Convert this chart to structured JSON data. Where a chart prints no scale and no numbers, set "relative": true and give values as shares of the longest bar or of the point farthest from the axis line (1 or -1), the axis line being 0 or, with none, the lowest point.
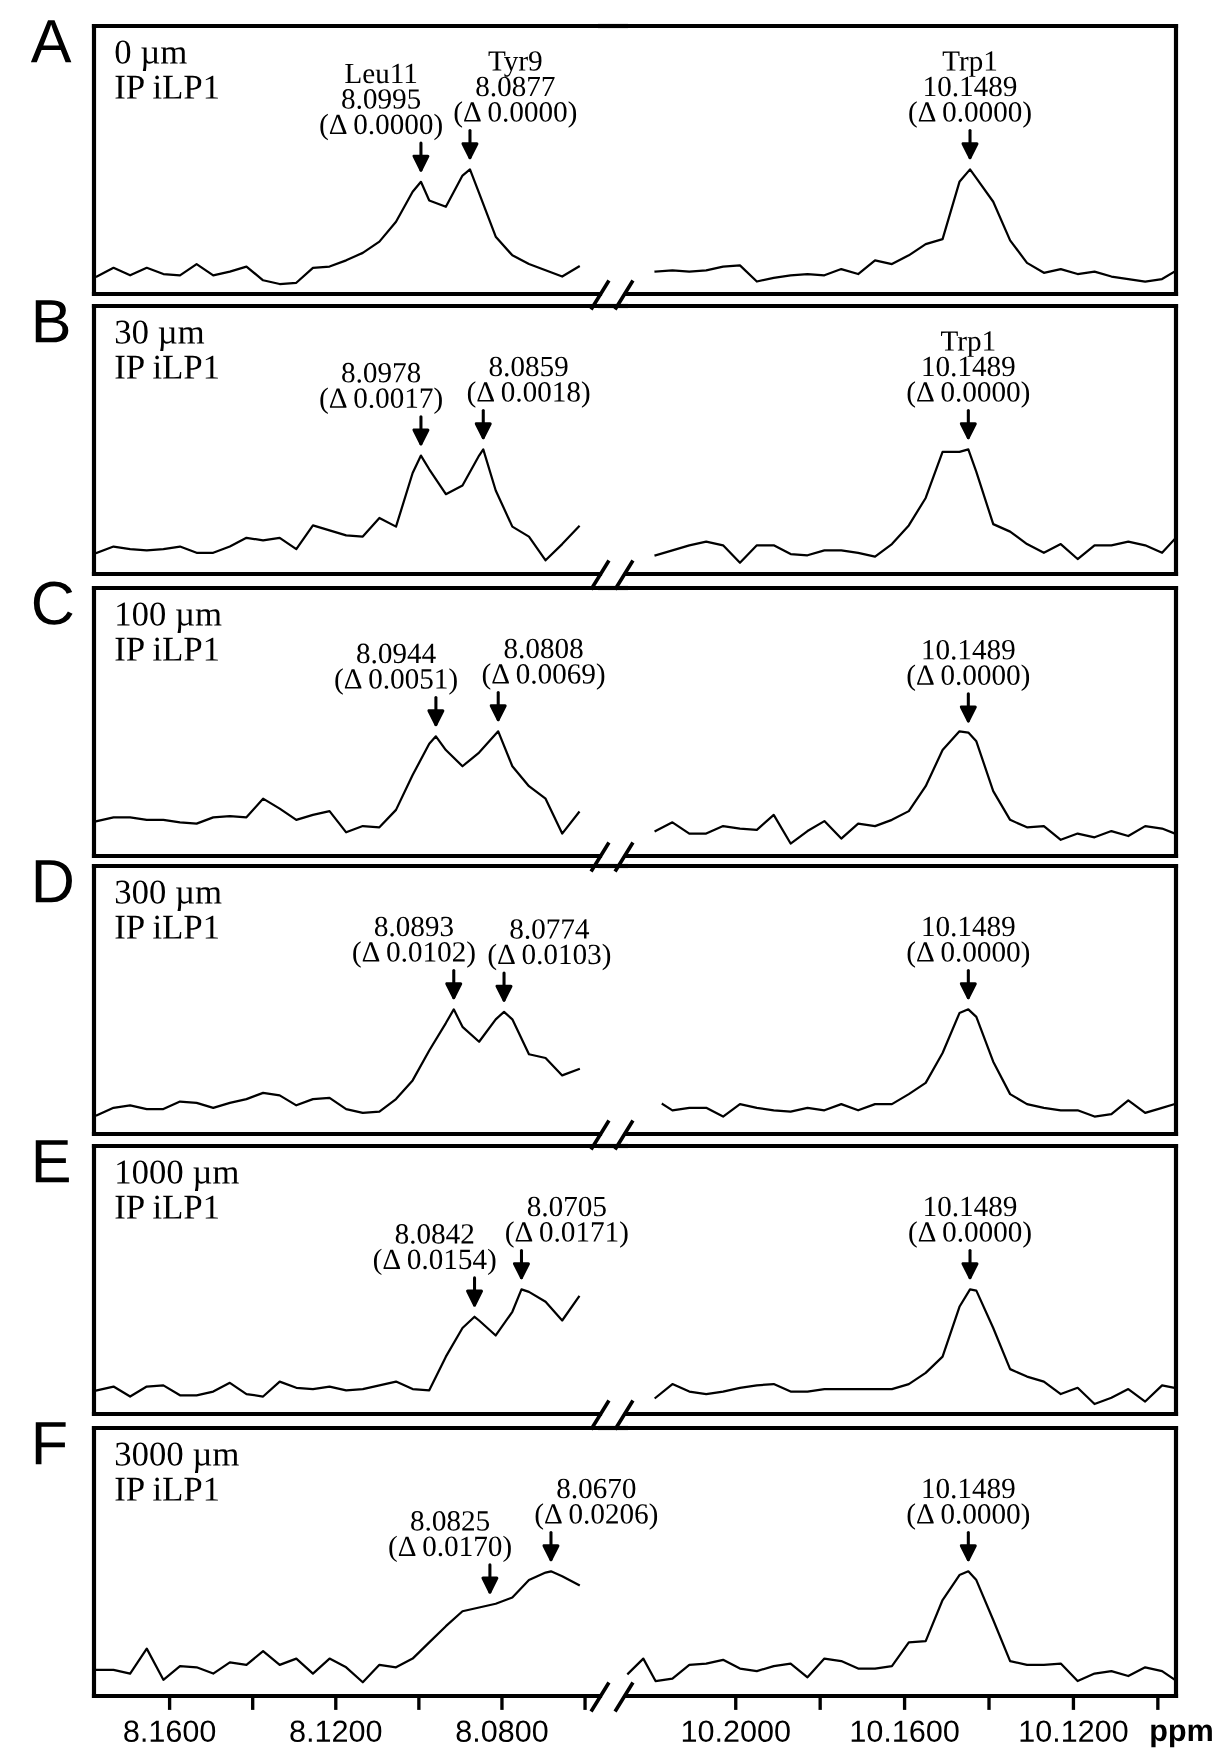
{
  "chart_data": [
    {
      "type": "line",
      "relative": true,
      "title": "A",
      "tick_labels": false,
      "xlim": [
        8.1782,
        8.0564
      ],
      "annotations": [
        "0 µm\nIP iLP1",
        {
          "text": "Leu11\n8.0995\n(Δ 0.0000)",
          "x": 8.0995,
          "y": 0.9
        },
        {
          "text": "Tyr9\n8.0877\n(Δ 0.0000)",
          "x": 8.0877,
          "y": 1
        }
      ],
      "series": [
        {
          "color": "#000000",
          "x": [
            8.1775,
            8.1735,
            8.1695,
            8.1655,
            8.1615,
            8.1575,
            8.1535,
            8.1495,
            8.1455,
            8.1415,
            8.1375,
            8.1335,
            8.1295,
            8.1255,
            8.1215,
            8.1175,
            8.1135,
            8.1095,
            8.1055,
            8.1015,
            8.0995,
            8.0975,
            8.0935,
            8.0895,
            8.0877,
            8.0855,
            8.0815,
            8.0775,
            8.0735,
            8.0695,
            8.0655,
            8.0615
          ],
          "values": [
            0.14,
            0.21,
            0.15,
            0.21,
            0.16,
            0.15,
            0.24,
            0.15,
            0.18,
            0.22,
            0.11,
            0.08,
            0.09,
            0.21,
            0.22,
            0.27,
            0.33,
            0.42,
            0.58,
            0.82,
            0.9,
            0.75,
            0.7,
            0.95,
            1,
            0.81,
            0.46,
            0.31,
            0.24,
            0.19,
            0.14,
            0.22
          ]
        }
      ]
    },
    {
      "type": "line",
      "relative": true,
      "tick_labels": false,
      "xlim": [
        10.226,
        10.0957
      ],
      "annotations": [
        {
          "text": "Trp1\n10.1489\n(Δ 0.0000)",
          "x": 10.1445,
          "y": 1
        }
      ],
      "series": [
        {
          "color": "#000000",
          "x": [
            10.219,
            10.215,
            10.211,
            10.207,
            10.203,
            10.199,
            10.195,
            10.191,
            10.187,
            10.183,
            10.179,
            10.175,
            10.171,
            10.167,
            10.163,
            10.159,
            10.155,
            10.151,
            10.147,
            10.1445,
            10.143,
            10.139,
            10.135,
            10.131,
            10.127,
            10.123,
            10.119,
            10.115,
            10.111,
            10.107,
            10.103,
            10.099,
            10.096
          ],
          "values": [
            0.18,
            0.19,
            0.18,
            0.19,
            0.22,
            0.23,
            0.1,
            0.13,
            0.15,
            0.16,
            0.15,
            0.2,
            0.16,
            0.27,
            0.24,
            0.31,
            0.4,
            0.44,
            0.9,
            1,
            0.93,
            0.74,
            0.43,
            0.25,
            0.17,
            0.2,
            0.16,
            0.18,
            0.14,
            0.12,
            0.1,
            0.12,
            0.18
          ]
        }
      ]
    },
    {
      "type": "line",
      "relative": true,
      "title": "B",
      "tick_labels": false,
      "xlim": [
        8.1782,
        8.0564
      ],
      "annotations": [
        "30 µm\nIP iLP1",
        {
          "text": "8.0978\n(Δ 0.0017)",
          "x": 8.0995,
          "y": 0.95
        },
        {
          "text": "8.0859\n(Δ 0.0018)",
          "x": 8.0845,
          "y": 1
        }
      ],
      "series": [
        {
          "color": "#000000",
          "x": [
            8.1775,
            8.1735,
            8.1695,
            8.1655,
            8.1615,
            8.1575,
            8.1535,
            8.1495,
            8.1455,
            8.1415,
            8.1375,
            8.1335,
            8.1295,
            8.1255,
            8.1215,
            8.1175,
            8.1135,
            8.1095,
            8.1055,
            8.1015,
            8.0995,
            8.0975,
            8.0935,
            8.0895,
            8.0855,
            8.0845,
            8.0815,
            8.0775,
            8.0735,
            8.0695,
            8.0655,
            8.0615
          ],
          "values": [
            0.17,
            0.22,
            0.2,
            0.19,
            0.2,
            0.22,
            0.17,
            0.17,
            0.22,
            0.29,
            0.27,
            0.29,
            0.2,
            0.39,
            0.35,
            0.31,
            0.3,
            0.45,
            0.38,
            0.81,
            0.95,
            0.84,
            0.64,
            0.71,
            0.95,
            1,
            0.67,
            0.38,
            0.3,
            0.11,
            0.24,
            0.38
          ]
        }
      ]
    },
    {
      "type": "line",
      "relative": true,
      "tick_labels": false,
      "xlim": [
        10.226,
        10.0957
      ],
      "annotations": [
        {
          "text": "Trp1\n10.1489\n(Δ 0.0000)",
          "x": 10.1449,
          "y": 1
        }
      ],
      "series": [
        {
          "color": "#000000",
          "x": [
            10.219,
            10.215,
            10.211,
            10.207,
            10.203,
            10.199,
            10.195,
            10.191,
            10.187,
            10.183,
            10.179,
            10.175,
            10.171,
            10.167,
            10.163,
            10.159,
            10.155,
            10.151,
            10.147,
            10.1449,
            10.143,
            10.139,
            10.135,
            10.131,
            10.127,
            10.123,
            10.119,
            10.115,
            10.111,
            10.107,
            10.103,
            10.099,
            10.096
          ],
          "values": [
            0.15,
            0.19,
            0.23,
            0.26,
            0.23,
            0.09,
            0.23,
            0.23,
            0.16,
            0.15,
            0.19,
            0.19,
            0.17,
            0.14,
            0.24,
            0.39,
            0.61,
            0.98,
            0.98,
            1,
            0.82,
            0.4,
            0.34,
            0.24,
            0.17,
            0.24,
            0.12,
            0.23,
            0.23,
            0.26,
            0.23,
            0.17,
            0.28
          ]
        }
      ]
    },
    {
      "type": "line",
      "relative": true,
      "title": "C",
      "tick_labels": false,
      "xlim": [
        8.1782,
        8.0564
      ],
      "annotations": [
        "100 µm\nIP iLP1",
        {
          "text": "8.0944\n(Δ 0.0051)",
          "x": 8.0959,
          "y": 0.96
        },
        {
          "text": "8.0808\n(Δ 0.0069)",
          "x": 8.0809,
          "y": 1
        }
      ],
      "series": [
        {
          "color": "#000000",
          "x": [
            8.1775,
            8.1735,
            8.1695,
            8.1655,
            8.1615,
            8.1575,
            8.1535,
            8.1495,
            8.1455,
            8.1415,
            8.1375,
            8.1335,
            8.1295,
            8.1255,
            8.1215,
            8.1175,
            8.1135,
            8.1095,
            8.1055,
            8.1015,
            8.0975,
            8.0959,
            8.0935,
            8.0895,
            8.0855,
            8.0809,
            8.0775,
            8.0735,
            8.0695,
            8.0655,
            8.0615
          ],
          "values": [
            0.28,
            0.31,
            0.31,
            0.29,
            0.29,
            0.27,
            0.26,
            0.31,
            0.32,
            0.31,
            0.46,
            0.38,
            0.29,
            0.33,
            0.36,
            0.19,
            0.24,
            0.23,
            0.37,
            0.65,
            0.9,
            0.96,
            0.85,
            0.72,
            0.83,
            1,
            0.72,
            0.56,
            0.46,
            0.18,
            0.35
          ]
        }
      ]
    },
    {
      "type": "line",
      "relative": true,
      "tick_labels": false,
      "xlim": [
        10.226,
        10.0957
      ],
      "annotations": [
        {
          "text": "10.1489\n(Δ 0.0000)",
          "x": 10.1449,
          "y": 0.99
        }
      ],
      "series": [
        {
          "color": "#000000",
          "x": [
            10.219,
            10.215,
            10.211,
            10.207,
            10.203,
            10.199,
            10.195,
            10.191,
            10.187,
            10.183,
            10.179,
            10.175,
            10.171,
            10.167,
            10.163,
            10.159,
            10.155,
            10.151,
            10.147,
            10.1449,
            10.143,
            10.139,
            10.135,
            10.131,
            10.127,
            10.123,
            10.119,
            10.115,
            10.111,
            10.107,
            10.103,
            10.099,
            10.096
          ],
          "values": [
            0.2,
            0.27,
            0.18,
            0.18,
            0.24,
            0.22,
            0.21,
            0.33,
            0.1,
            0.2,
            0.28,
            0.14,
            0.26,
            0.24,
            0.29,
            0.36,
            0.56,
            0.85,
            1,
            0.99,
            0.92,
            0.52,
            0.29,
            0.23,
            0.24,
            0.13,
            0.18,
            0.15,
            0.2,
            0.16,
            0.24,
            0.22,
            0.18
          ]
        }
      ]
    },
    {
      "type": "line",
      "relative": true,
      "title": "D",
      "tick_labels": false,
      "xlim": [
        8.1782,
        8.0564
      ],
      "annotations": [
        "300 µm\nIP iLP1",
        {
          "text": "8.0893\n(Δ 0.0102)",
          "x": 8.0916,
          "y": 1
        },
        {
          "text": "8.0774\n(Δ 0.0103)",
          "x": 8.0795,
          "y": 0.98
        }
      ],
      "series": [
        {
          "color": "#000000",
          "x": [
            8.1775,
            8.1735,
            8.1695,
            8.1655,
            8.1615,
            8.1575,
            8.1535,
            8.1495,
            8.1455,
            8.1415,
            8.1375,
            8.1335,
            8.1295,
            8.1255,
            8.1215,
            8.1175,
            8.1135,
            8.1095,
            8.1055,
            8.1015,
            8.0975,
            8.0935,
            8.0916,
            8.0895,
            8.0855,
            8.0815,
            8.0795,
            8.0775,
            8.0735,
            8.0695,
            8.0655,
            8.0615
          ],
          "values": [
            0.15,
            0.21,
            0.23,
            0.2,
            0.2,
            0.26,
            0.25,
            0.21,
            0.25,
            0.28,
            0.33,
            0.31,
            0.23,
            0.28,
            0.29,
            0.2,
            0.17,
            0.18,
            0.28,
            0.43,
            0.67,
            0.89,
            1,
            0.86,
            0.74,
            0.92,
            0.98,
            0.92,
            0.64,
            0.61,
            0.47,
            0.52
          ]
        }
      ]
    },
    {
      "type": "line",
      "relative": true,
      "tick_labels": false,
      "xlim": [
        10.226,
        10.0957
      ],
      "annotations": [
        {
          "text": "10.1489\n(Δ 0.0000)",
          "x": 10.1449,
          "y": 1
        }
      ],
      "series": [
        {
          "color": "#000000",
          "x": [
            10.2173,
            10.215,
            10.211,
            10.207,
            10.203,
            10.199,
            10.195,
            10.191,
            10.187,
            10.183,
            10.179,
            10.175,
            10.171,
            10.167,
            10.163,
            10.159,
            10.155,
            10.151,
            10.147,
            10.1449,
            10.143,
            10.139,
            10.135,
            10.131,
            10.127,
            10.123,
            10.119,
            10.115,
            10.111,
            10.107,
            10.103,
            10.099,
            10.096
          ],
          "values": [
            0.24,
            0.19,
            0.21,
            0.21,
            0.14,
            0.24,
            0.21,
            0.19,
            0.18,
            0.21,
            0.19,
            0.24,
            0.19,
            0.24,
            0.24,
            0.32,
            0.41,
            0.65,
            0.97,
            1,
            0.94,
            0.58,
            0.32,
            0.24,
            0.21,
            0.19,
            0.19,
            0.14,
            0.16,
            0.27,
            0.17,
            0.21,
            0.24
          ]
        }
      ]
    },
    {
      "type": "line",
      "relative": true,
      "title": "E",
      "tick_labels": false,
      "xlim": [
        8.1782,
        8.0564
      ],
      "annotations": [
        "1000 µm\nIP iLP1",
        {
          "text": "8.0842\n(Δ 0.0154)",
          "x": 8.0866,
          "y": 0.78
        },
        {
          "text": "8.0705\n(Δ 0.0171)",
          "x": 8.0753,
          "y": 1
        }
      ],
      "series": [
        {
          "color": "#000000",
          "x": [
            8.1775,
            8.1735,
            8.1695,
            8.1655,
            8.1615,
            8.1575,
            8.1535,
            8.1495,
            8.1455,
            8.1415,
            8.1375,
            8.1335,
            8.1295,
            8.1255,
            8.1215,
            8.1175,
            8.1135,
            8.1095,
            8.1055,
            8.1015,
            8.0975,
            8.0935,
            8.0895,
            8.0866,
            8.0855,
            8.0815,
            8.0775,
            8.0753,
            8.0735,
            8.0695,
            8.0655,
            8.0615
          ],
          "values": [
            0.19,
            0.22,
            0.14,
            0.22,
            0.23,
            0.15,
            0.15,
            0.18,
            0.25,
            0.16,
            0.14,
            0.26,
            0.21,
            0.2,
            0.22,
            0.19,
            0.2,
            0.23,
            0.26,
            0.2,
            0.19,
            0.46,
            0.69,
            0.78,
            0.75,
            0.63,
            0.82,
            1,
            0.98,
            0.9,
            0.75,
            0.94
          ]
        }
      ]
    },
    {
      "type": "line",
      "relative": true,
      "tick_labels": false,
      "xlim": [
        10.226,
        10.0957
      ],
      "annotations": [
        {
          "text": "10.1489\n(Δ 0.0000)",
          "x": 10.1445,
          "y": 1
        }
      ],
      "series": [
        {
          "color": "#000000",
          "x": [
            10.219,
            10.215,
            10.211,
            10.207,
            10.203,
            10.199,
            10.195,
            10.191,
            10.187,
            10.183,
            10.179,
            10.175,
            10.171,
            10.167,
            10.163,
            10.159,
            10.155,
            10.151,
            10.147,
            10.1445,
            10.143,
            10.139,
            10.135,
            10.131,
            10.127,
            10.123,
            10.119,
            10.115,
            10.111,
            10.107,
            10.103,
            10.099,
            10.096
          ],
          "values": [
            0.13,
            0.24,
            0.18,
            0.16,
            0.18,
            0.21,
            0.23,
            0.24,
            0.18,
            0.18,
            0.2,
            0.2,
            0.2,
            0.2,
            0.2,
            0.24,
            0.33,
            0.46,
            0.86,
            1,
            0.99,
            0.69,
            0.36,
            0.3,
            0.26,
            0.16,
            0.21,
            0.08,
            0.13,
            0.2,
            0.1,
            0.23,
            0.21
          ]
        }
      ]
    },
    {
      "type": "line",
      "relative": true,
      "title": "F",
      "tick_labels": "x",
      "xlim": [
        8.1782,
        8.0564
      ],
      "xticks": [
        {
          "value": 8.16,
          "label": "8.1600"
        },
        {
          "value": 8.14,
          "label": null
        },
        {
          "value": 8.12,
          "label": "8.1200"
        },
        {
          "value": 8.1,
          "label": null
        },
        {
          "value": 8.08,
          "label": "8.0800"
        },
        {
          "value": 8.06,
          "label": null
        }
      ],
      "annotations": [
        "3000 µm\nIP iLP1",
        {
          "text": "8.0825\n(Δ 0.0170)",
          "x": 8.0829,
          "y": 0.74
        },
        {
          "text": "8.0670\n(Δ 0.0206)",
          "x": 8.0682,
          "y": 1
        }
      ],
      "series": [
        {
          "color": "#000000",
          "x": [
            8.1775,
            8.1735,
            8.1695,
            8.1655,
            8.1615,
            8.1575,
            8.1535,
            8.1495,
            8.1455,
            8.1415,
            8.1375,
            8.1335,
            8.1295,
            8.1255,
            8.1215,
            8.1175,
            8.1135,
            8.1095,
            8.1055,
            8.1015,
            8.0975,
            8.0935,
            8.0895,
            8.0855,
            8.0815,
            8.0775,
            8.0735,
            8.0695,
            8.0682,
            8.0655,
            8.0615
          ],
          "values": [
            0.21,
            0.21,
            0.18,
            0.38,
            0.13,
            0.24,
            0.23,
            0.18,
            0.27,
            0.25,
            0.36,
            0.25,
            0.3,
            0.18,
            0.3,
            0.23,
            0.11,
            0.25,
            0.23,
            0.3,
            0.43,
            0.56,
            0.68,
            0.71,
            0.74,
            0.79,
            0.93,
            0.99,
            1,
            0.96,
            0.89
          ]
        }
      ]
    },
    {
      "type": "line",
      "relative": true,
      "tick_labels": "x",
      "xlim": [
        10.226,
        10.0957
      ],
      "xlabel": "ppm",
      "xticks": [
        {
          "value": 10.2,
          "label": "10.2000"
        },
        {
          "value": 10.18,
          "label": null
        },
        {
          "value": 10.16,
          "label": "10.1600"
        },
        {
          "value": 10.14,
          "label": null
        },
        {
          "value": 10.12,
          "label": "10.1200"
        },
        {
          "value": 10.1,
          "label": null
        }
      ],
      "annotations": [
        {
          "text": "10.1489\n(Δ 0.0000)",
          "x": 10.1449,
          "y": 1
        }
      ],
      "series": [
        {
          "color": "#000000",
          "x": [
            10.2255,
            10.2219,
            10.219,
            10.215,
            10.211,
            10.207,
            10.203,
            10.199,
            10.195,
            10.191,
            10.187,
            10.183,
            10.179,
            10.175,
            10.171,
            10.167,
            10.163,
            10.159,
            10.155,
            10.151,
            10.147,
            10.1449,
            10.143,
            10.139,
            10.135,
            10.131,
            10.127,
            10.123,
            10.119,
            10.115,
            10.111,
            10.107,
            10.103,
            10.099,
            10.096
          ],
          "values": [
            0.18,
            0.3,
            0.12,
            0.14,
            0.25,
            0.26,
            0.29,
            0.22,
            0.2,
            0.24,
            0.26,
            0.15,
            0.3,
            0.28,
            0.22,
            0.22,
            0.24,
            0.43,
            0.44,
            0.77,
            0.97,
            1,
            0.93,
            0.61,
            0.28,
            0.25,
            0.25,
            0.26,
            0.12,
            0.18,
            0.2,
            0.16,
            0.23,
            0.2,
            0.13
          ]
        }
      ]
    }
  ]
}
